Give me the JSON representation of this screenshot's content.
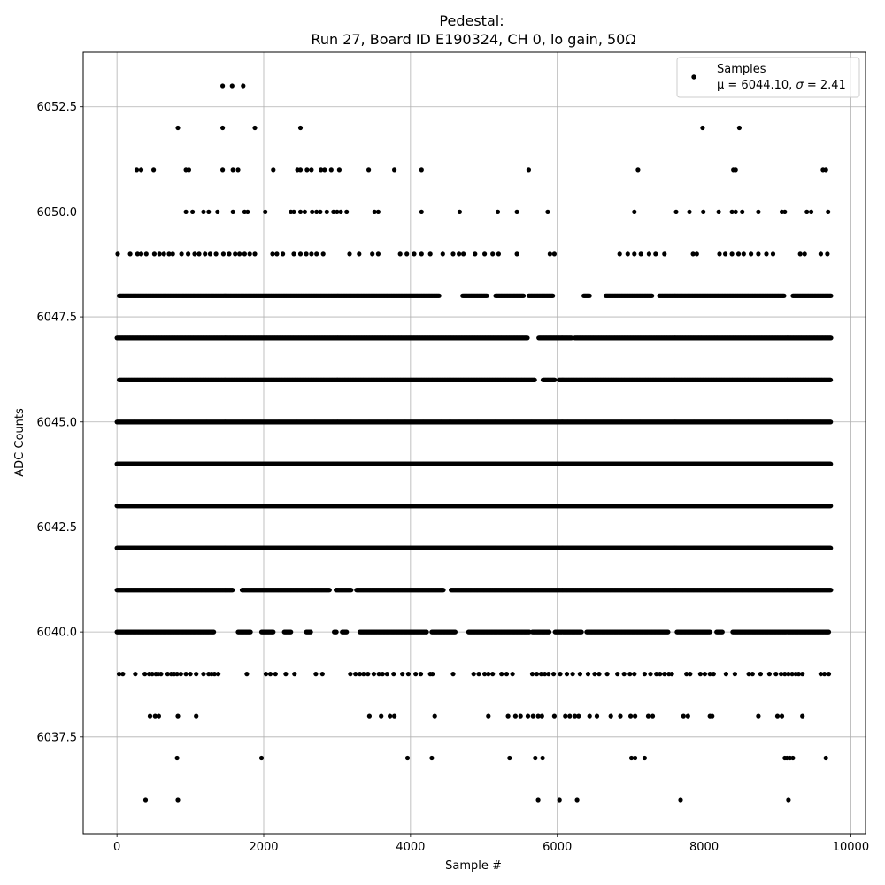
{
  "chart_data": {
    "type": "scatter",
    "title": "Pedestal:",
    "subtitle": "Run 27, Board ID E190324, CH 0, lo gain, 50Ω",
    "xlabel": "Sample #",
    "ylabel": "ADC Counts",
    "xlim": [
      -460,
      10200
    ],
    "ylim": [
      6035.2,
      6053.8
    ],
    "x_ticks": [
      0,
      2000,
      4000,
      6000,
      8000,
      10000
    ],
    "y_ticks": [
      6037.5,
      6040.0,
      6042.5,
      6045.0,
      6047.5,
      6050.0,
      6052.5
    ],
    "grid": true,
    "legend": {
      "placement": "top-right",
      "entries": [
        {
          "label": "Samples",
          "sublabel_prefix": "μ = 6044.10, ",
          "sublabel_sigma": "σ",
          "sublabel_suffix": " = 2.41"
        }
      ]
    },
    "marker_color": "#000000",
    "series": [
      {
        "name": "Samples",
        "n_samples": 9728,
        "levels": [
          {
            "y": 6053,
            "x": [
              1440,
              1570,
              1720
            ]
          },
          {
            "y": 6052,
            "x": [
              830,
              1440,
              1880,
              2500,
              7980,
              8480
            ]
          },
          {
            "y": 6051,
            "x": [
              270,
              330,
              500,
              940,
              980,
              1440,
              1580,
              1650,
              2130,
              2460,
              2500,
              2590,
              2650,
              2780,
              2830,
              2920,
              3030,
              3430,
              3780,
              4150,
              5610,
              7100,
              8400,
              8430,
              9620,
              9660
            ]
          },
          {
            "y": 6050,
            "x": [
              940,
              1030,
              1180,
              1250,
              1370,
              1580,
              1740,
              1780,
              2020,
              2370,
              2410,
              2500,
              2560,
              2660,
              2720,
              2770,
              2860,
              2950,
              3000,
              3050,
              3130,
              3510,
              3560,
              4150,
              4670,
              5190,
              5450,
              5870,
              7050,
              7620,
              7800,
              7990,
              8200,
              8380,
              8430,
              8520,
              8740,
              9060,
              9100,
              9400,
              9460,
              9690
            ]
          },
          {
            "y": 6049,
            "x": [
              10,
              180,
              280,
              330,
              400,
              510,
              580,
              640,
              710,
              760,
              880,
              970,
              1060,
              1120,
              1200,
              1270,
              1350,
              1450,
              1530,
              1610,
              1670,
              1740,
              1810,
              1880,
              2120,
              2180,
              2260,
              2410,
              2500,
              2580,
              2650,
              2720,
              2810,
              3170,
              3300,
              3480,
              3560,
              3860,
              3950,
              4050,
              4150,
              4270,
              4440,
              4580,
              4660,
              4720,
              4880,
              5010,
              5120,
              5200,
              5450,
              5900,
              5960,
              6850,
              6960,
              7050,
              7140,
              7250,
              7340,
              7460,
              7850,
              7900,
              8210,
              8290,
              8380,
              8470,
              8540,
              8640,
              8740,
              8850,
              8940,
              9310,
              9370,
              9590,
              9680
            ]
          },
          {
            "y": 6048,
            "x_start": 30,
            "x_end": 9730,
            "step": 10,
            "gaps": [
              [
                4400,
                4700
              ],
              [
                5050,
                5150
              ],
              [
                5550,
                5600
              ],
              [
                5950,
                6350
              ],
              [
                6450,
                6650
              ],
              [
                7300,
                7380
              ],
              [
                9100,
                9200
              ]
            ]
          },
          {
            "y": 6047,
            "x_start": 0,
            "x_end": 9730,
            "step": 7,
            "gaps": [
              [
                5600,
                5740
              ],
              [
                6200,
                6230
              ]
            ]
          },
          {
            "y": 6046,
            "x_start": 30,
            "x_end": 9730,
            "step": 7,
            "gaps": [
              [
                5700,
                5800
              ],
              [
                5970,
                6020
              ]
            ]
          },
          {
            "y": 6045,
            "x_start": 0,
            "x_end": 9730,
            "step": 6
          },
          {
            "y": 6044,
            "x_start": 0,
            "x_end": 9730,
            "step": 6
          },
          {
            "y": 6043,
            "x_start": 0,
            "x_end": 9730,
            "step": 6
          },
          {
            "y": 6042,
            "x_start": 0,
            "x_end": 9730,
            "step": 6
          },
          {
            "y": 6041,
            "x_start": 0,
            "x_end": 9730,
            "step": 8,
            "gaps": [
              [
                1580,
                1700
              ],
              [
                2900,
                2980
              ],
              [
                3200,
                3260
              ],
              [
                4450,
                4550
              ]
            ]
          },
          {
            "y": 6040,
            "x_start": 0,
            "x_end": 9700,
            "step": 10,
            "gaps": [
              [
                1330,
                1640
              ],
              [
                1830,
                1960
              ],
              [
                2140,
                2270
              ],
              [
                2380,
                2570
              ],
              [
                2650,
                2950
              ],
              [
                3000,
                3060
              ],
              [
                3140,
                3300
              ],
              [
                4230,
                4280
              ],
              [
                4620,
                4780
              ],
              [
                5630,
                5650
              ],
              [
                5900,
                5960
              ],
              [
                6340,
                6390
              ],
              [
                7520,
                7620
              ],
              [
                8090,
                8160
              ],
              [
                8260,
                8380
              ]
            ]
          },
          {
            "y": 6039,
            "x": [
              30,
              80,
              250,
              380,
              440,
              480,
              530,
              560,
              600,
              690,
              740,
              780,
              820,
              870,
              940,
              1000,
              1080,
              1180,
              1250,
              1290,
              1330,
              1380,
              1770,
              2030,
              2090,
              2160,
              2300,
              2420,
              2710,
              2800,
              3180,
              3250,
              3310,
              3360,
              3420,
              3500,
              3570,
              3620,
              3680,
              3770,
              3890,
              3970,
              4070,
              4140,
              4270,
              4300,
              4580,
              4860,
              4930,
              5010,
              5060,
              5120,
              5240,
              5310,
              5390,
              5660,
              5720,
              5780,
              5830,
              5880,
              5950,
              6040,
              6130,
              6210,
              6310,
              6420,
              6510,
              6570,
              6680,
              6820,
              6910,
              6990,
              7050,
              7190,
              7270,
              7350,
              7400,
              7460,
              7520,
              7560,
              7760,
              7810,
              7950,
              8010,
              8080,
              8130,
              8300,
              8420,
              8610,
              8660,
              8770,
              8890,
              8980,
              9050,
              9100,
              9150,
              9200,
              9250,
              9290,
              9340,
              9590,
              9640,
              9700
            ]
          },
          {
            "y": 6038,
            "x": [
              450,
              520,
              570,
              830,
              1080,
              3440,
              3600,
              3720,
              3780,
              4330,
              5060,
              5330,
              5430,
              5500,
              5600,
              5670,
              5740,
              5790,
              5960,
              6110,
              6170,
              6240,
              6290,
              6440,
              6540,
              6730,
              6860,
              7000,
              7060,
              7240,
              7300,
              7720,
              7780,
              8080,
              8110,
              8740,
              9000,
              9060,
              9340
            ]
          },
          {
            "y": 6037,
            "x": [
              820,
              1970,
              3960,
              4290,
              5350,
              5700,
              5800,
              7010,
              7060,
              7190,
              9100,
              9130,
              9170,
              9210,
              9660
            ]
          },
          {
            "y": 6036,
            "x": [
              390,
              830,
              5740,
              6030,
              6270,
              7680,
              9150
            ]
          }
        ]
      }
    ]
  }
}
